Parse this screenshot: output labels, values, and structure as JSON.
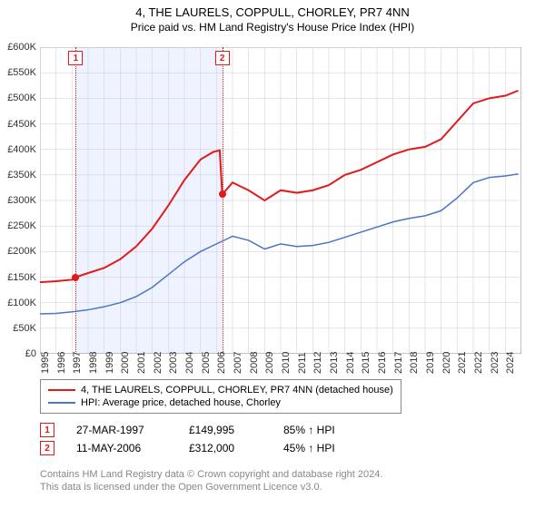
{
  "title": "4, THE LAURELS, COPPULL, CHORLEY, PR7 4NN",
  "subtitle": "Price paid vs. HM Land Registry's House Price Index (HPI)",
  "chart": {
    "type": "line",
    "background_color": "#ffffff",
    "grid_color": "#cccccc",
    "axis_color": "#888888",
    "xlim": [
      1995,
      2025
    ],
    "ylim": [
      0,
      600000
    ],
    "ytick_step": 50000,
    "yticks": [
      "£0",
      "£50K",
      "£100K",
      "£150K",
      "£200K",
      "£250K",
      "£300K",
      "£350K",
      "£400K",
      "£450K",
      "£500K",
      "£550K",
      "£600K"
    ],
    "xticks": [
      1995,
      1996,
      1997,
      1998,
      1999,
      2000,
      2001,
      2002,
      2003,
      2004,
      2005,
      2006,
      2007,
      2008,
      2009,
      2010,
      2011,
      2012,
      2013,
      2014,
      2015,
      2016,
      2017,
      2018,
      2019,
      2020,
      2021,
      2022,
      2023,
      2024
    ],
    "band": {
      "start": 1997.23,
      "end": 2006.36,
      "color": "rgba(120,160,255,0.12)"
    },
    "series": [
      {
        "name": "price_paid",
        "label": "4, THE LAURELS, COPPULL, CHORLEY, PR7 4NN (detached house)",
        "color": "#e31a1c",
        "line_width": 2,
        "data": [
          [
            1995,
            140000
          ],
          [
            1996,
            142000
          ],
          [
            1997,
            145000
          ],
          [
            1997.23,
            149995
          ],
          [
            1998,
            158000
          ],
          [
            1999,
            168000
          ],
          [
            2000,
            185000
          ],
          [
            2001,
            210000
          ],
          [
            2002,
            245000
          ],
          [
            2003,
            290000
          ],
          [
            2004,
            340000
          ],
          [
            2005,
            380000
          ],
          [
            2005.8,
            395000
          ],
          [
            2006.2,
            398000
          ],
          [
            2006.36,
            312000
          ],
          [
            2007,
            335000
          ],
          [
            2008,
            320000
          ],
          [
            2009,
            300000
          ],
          [
            2010,
            320000
          ],
          [
            2011,
            315000
          ],
          [
            2012,
            320000
          ],
          [
            2013,
            330000
          ],
          [
            2014,
            350000
          ],
          [
            2015,
            360000
          ],
          [
            2016,
            375000
          ],
          [
            2017,
            390000
          ],
          [
            2018,
            400000
          ],
          [
            2019,
            405000
          ],
          [
            2020,
            420000
          ],
          [
            2021,
            455000
          ],
          [
            2022,
            490000
          ],
          [
            2023,
            500000
          ],
          [
            2024,
            505000
          ],
          [
            2024.8,
            515000
          ]
        ]
      },
      {
        "name": "hpi",
        "label": "HPI: Average price, detached house, Chorley",
        "color": "#4a76c7",
        "line_width": 1.5,
        "data": [
          [
            1995,
            78000
          ],
          [
            1996,
            79000
          ],
          [
            1997,
            82000
          ],
          [
            1998,
            86000
          ],
          [
            1999,
            92000
          ],
          [
            2000,
            100000
          ],
          [
            2001,
            112000
          ],
          [
            2002,
            130000
          ],
          [
            2003,
            155000
          ],
          [
            2004,
            180000
          ],
          [
            2005,
            200000
          ],
          [
            2006,
            215000
          ],
          [
            2007,
            230000
          ],
          [
            2008,
            222000
          ],
          [
            2009,
            205000
          ],
          [
            2010,
            215000
          ],
          [
            2011,
            210000
          ],
          [
            2012,
            212000
          ],
          [
            2013,
            218000
          ],
          [
            2014,
            228000
          ],
          [
            2015,
            238000
          ],
          [
            2016,
            248000
          ],
          [
            2017,
            258000
          ],
          [
            2018,
            265000
          ],
          [
            2019,
            270000
          ],
          [
            2020,
            280000
          ],
          [
            2021,
            305000
          ],
          [
            2022,
            335000
          ],
          [
            2023,
            345000
          ],
          [
            2024,
            348000
          ],
          [
            2024.8,
            352000
          ]
        ]
      }
    ],
    "markers": [
      {
        "n": "1",
        "x": 1997.23,
        "y": 149995
      },
      {
        "n": "2",
        "x": 2006.36,
        "y": 312000
      }
    ]
  },
  "legend": {
    "s1": "4, THE LAURELS, COPPULL, CHORLEY, PR7 4NN (detached house)",
    "s2": "HPI: Average price, detached house, Chorley"
  },
  "sales": [
    {
      "n": "1",
      "date": "27-MAR-1997",
      "price": "£149,995",
      "hpi": "85% ↑ HPI"
    },
    {
      "n": "2",
      "date": "11-MAY-2006",
      "price": "£312,000",
      "hpi": "45% ↑ HPI"
    }
  ],
  "footer1": "Contains HM Land Registry data © Crown copyright and database right 2024.",
  "footer2": "This data is licensed under the Open Government Licence v3.0."
}
